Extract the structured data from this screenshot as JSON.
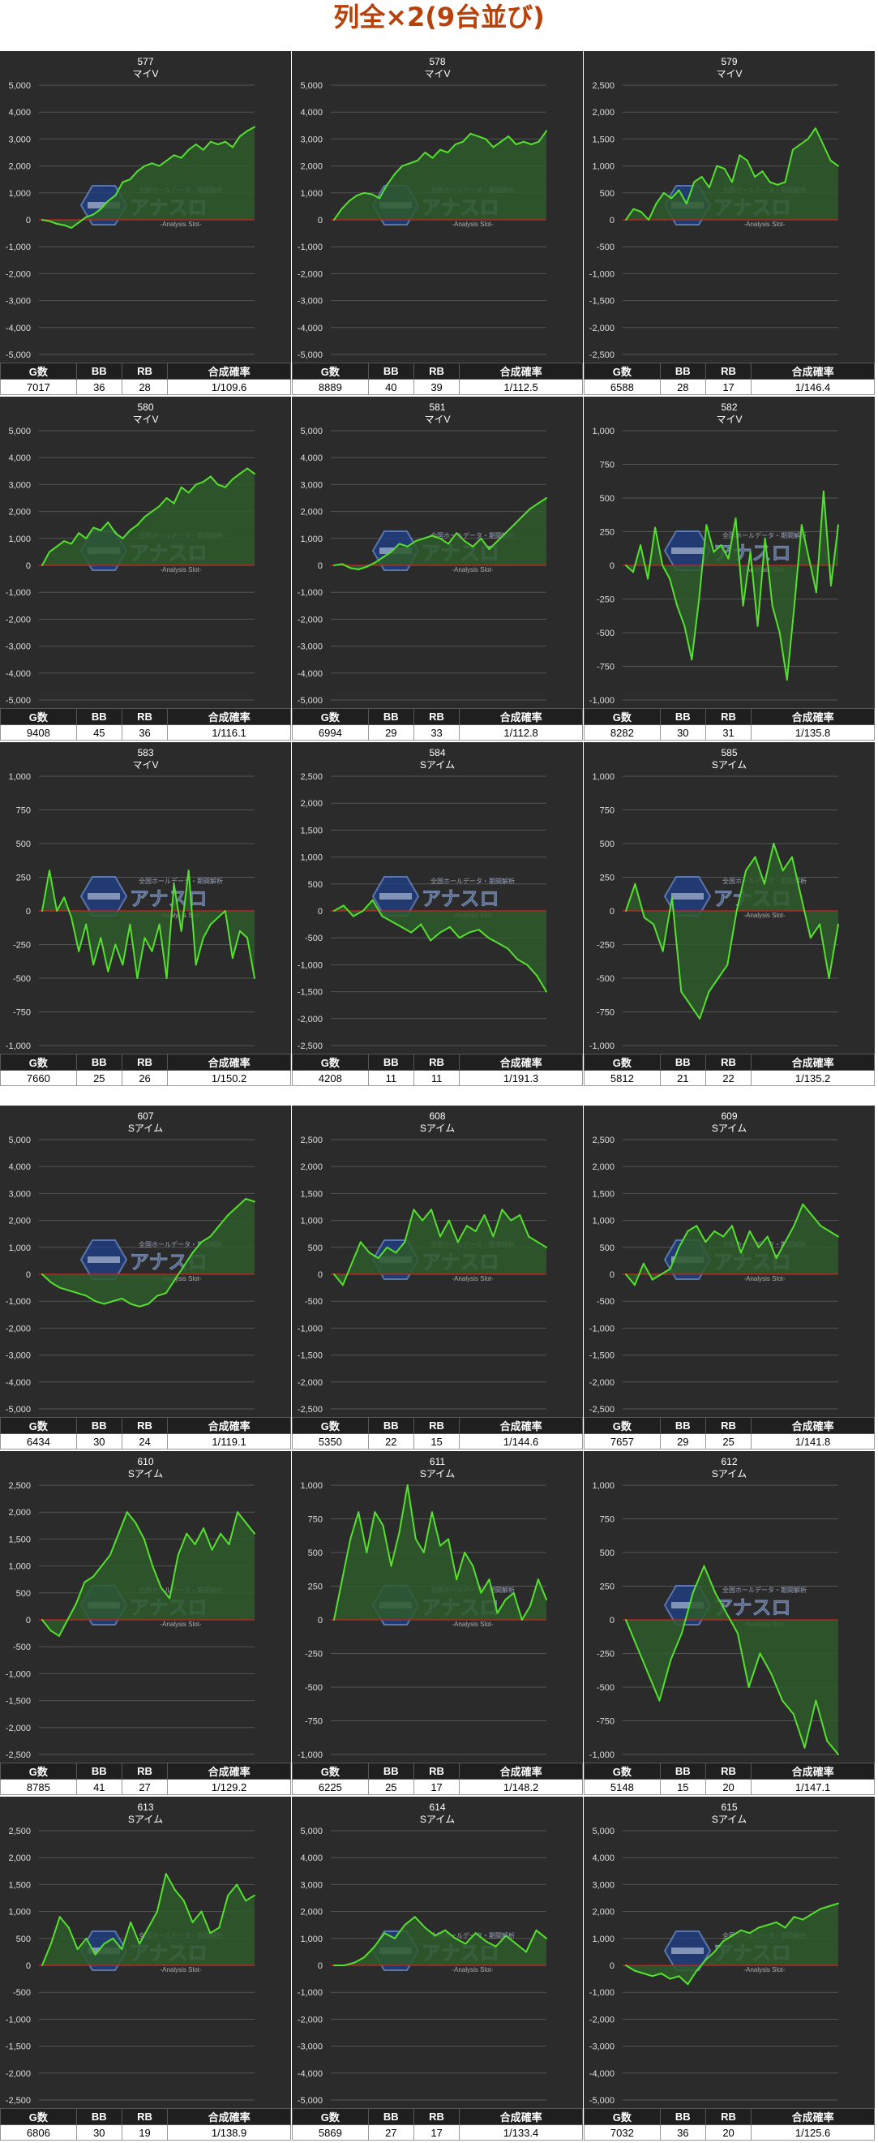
{
  "page_title": "列全×2(9台並び)",
  "stats_headers": [
    "G数",
    "BB",
    "RB",
    "合成確率"
  ],
  "colors": {
    "background": "#2b2b2b",
    "line": "#55e02f",
    "fill": "#2e5a2c",
    "zero_line": "#cc2222",
    "grid": "#555555",
    "title": "#b8410a"
  },
  "watermark": {
    "logo_text": "アナスロ",
    "sub_text": "-Analysis Slot-",
    "top_text": "全国ホールデータ・期間解析"
  },
  "chart_data": [
    {
      "type": "area",
      "title": "577",
      "subtitle": "マイV",
      "ylim": [
        -5000,
        5000
      ],
      "yticks": [
        5000,
        4000,
        3000,
        2000,
        1000,
        0,
        -1000,
        -2000,
        -3000,
        -4000,
        -5000
      ],
      "tick_labels": [
        "5,000",
        "4,000",
        "3,000",
        "2,000",
        "1,000",
        "0",
        "-1,000",
        "-2,000",
        "-3,000",
        "-4,000",
        "-5,000"
      ],
      "values": [
        0,
        -50,
        -150,
        -200,
        -300,
        -100,
        100,
        200,
        400,
        700,
        900,
        1400,
        1500,
        1800,
        2000,
        2100,
        2000,
        2200,
        2400,
        2300,
        2600,
        2800,
        2600,
        2900,
        2800,
        2900,
        2700,
        3100,
        3300,
        3450
      ],
      "stats": {
        "games": "7017",
        "bb": "36",
        "rb": "28",
        "prob": "1/109.6"
      }
    },
    {
      "type": "area",
      "title": "578",
      "subtitle": "マイV",
      "ylim": [
        -5000,
        5000
      ],
      "yticks": [
        5000,
        4000,
        3000,
        2000,
        1000,
        0,
        -1000,
        -2000,
        -3000,
        -4000,
        -5000
      ],
      "tick_labels": [
        "5,000",
        "4,000",
        "3,000",
        "2,000",
        "1,000",
        "0",
        "-1,000",
        "-2,000",
        "-3,000",
        "-4,000",
        "-5,000"
      ],
      "values": [
        0,
        400,
        700,
        900,
        1000,
        950,
        800,
        1300,
        1700,
        2000,
        2100,
        2200,
        2500,
        2300,
        2600,
        2500,
        2800,
        2900,
        3200,
        3100,
        3000,
        2700,
        2900,
        3100,
        2800,
        2900,
        2800,
        2900,
        3300
      ],
      "stats": {
        "games": "8889",
        "bb": "40",
        "rb": "39",
        "prob": "1/112.5"
      }
    },
    {
      "type": "area",
      "title": "579",
      "subtitle": "マイV",
      "ylim": [
        -2500,
        2500
      ],
      "yticks": [
        2500,
        2000,
        1500,
        1000,
        500,
        0,
        -500,
        -1000,
        -1500,
        -2000,
        -2500
      ],
      "tick_labels": [
        "2,500",
        "2,000",
        "1,500",
        "1,000",
        "500",
        "0",
        "-500",
        "-1,000",
        "-1,500",
        "-2,000",
        "-2,500"
      ],
      "values": [
        0,
        200,
        150,
        0,
        300,
        500,
        400,
        550,
        300,
        700,
        800,
        600,
        1000,
        950,
        700,
        1200,
        1100,
        800,
        900,
        700,
        650,
        700,
        1300,
        1400,
        1500,
        1700,
        1400,
        1100,
        1000
      ],
      "stats": {
        "games": "6588",
        "bb": "28",
        "rb": "17",
        "prob": "1/146.4"
      }
    },
    {
      "type": "area",
      "title": "580",
      "subtitle": "マイV",
      "ylim": [
        -5000,
        5000
      ],
      "yticks": [
        5000,
        4000,
        3000,
        2000,
        1000,
        0,
        -1000,
        -2000,
        -3000,
        -4000,
        -5000
      ],
      "tick_labels": [
        "5,000",
        "4,000",
        "3,000",
        "2,000",
        "1,000",
        "0",
        "-1,000",
        "-2,000",
        "-3,000",
        "-4,000",
        "-5,000"
      ],
      "values": [
        0,
        500,
        700,
        900,
        800,
        1200,
        1000,
        1400,
        1300,
        1600,
        1200,
        1000,
        1300,
        1500,
        1800,
        2000,
        2200,
        2500,
        2300,
        2900,
        2700,
        3000,
        3100,
        3300,
        3000,
        2900,
        3200,
        3400,
        3600,
        3400
      ],
      "stats": {
        "games": "9408",
        "bb": "45",
        "rb": "36",
        "prob": "1/116.1"
      }
    },
    {
      "type": "area",
      "title": "581",
      "subtitle": "マイV",
      "ylim": [
        -5000,
        5000
      ],
      "yticks": [
        5000,
        4000,
        3000,
        2000,
        1000,
        0,
        -1000,
        -2000,
        -3000,
        -4000,
        -5000
      ],
      "tick_labels": [
        "5,000",
        "4,000",
        "3,000",
        "2,000",
        "1,000",
        "0",
        "-1,000",
        "-2,000",
        "-3,000",
        "-4,000",
        "-5,000"
      ],
      "values": [
        0,
        50,
        -100,
        -150,
        -50,
        100,
        300,
        500,
        800,
        700,
        900,
        1000,
        1100,
        1000,
        800,
        1200,
        900,
        700,
        1000,
        600,
        900,
        1200,
        1500,
        1800,
        2100,
        2300,
        2500
      ],
      "stats": {
        "games": "6994",
        "bb": "29",
        "rb": "33",
        "prob": "1/112.8"
      }
    },
    {
      "type": "area",
      "title": "582",
      "subtitle": "マイV",
      "ylim": [
        -1000,
        1000
      ],
      "yticks": [
        1000,
        750,
        500,
        250,
        0,
        -250,
        -500,
        -750,
        -1000
      ],
      "tick_labels": [
        "1,000",
        "750",
        "500",
        "250",
        "0",
        "-250",
        "-500",
        "-750",
        "-1,000"
      ],
      "values": [
        0,
        -50,
        150,
        -100,
        280,
        0,
        -100,
        -300,
        -450,
        -700,
        -250,
        300,
        100,
        150,
        50,
        350,
        -300,
        100,
        -450,
        200,
        -300,
        -500,
        -850,
        -300,
        300,
        50,
        -200,
        550,
        -150,
        300
      ],
      "stats": {
        "games": "8282",
        "bb": "30",
        "rb": "31",
        "prob": "1/135.8"
      }
    },
    {
      "type": "area",
      "title": "583",
      "subtitle": "マイV",
      "ylim": [
        -1000,
        1000
      ],
      "yticks": [
        1000,
        750,
        500,
        250,
        0,
        -250,
        -500,
        -750,
        -1000
      ],
      "tick_labels": [
        "1,000",
        "750",
        "500",
        "250",
        "0",
        "-250",
        "-500",
        "-750",
        "-1,000"
      ],
      "values": [
        0,
        300,
        0,
        100,
        -50,
        -300,
        -100,
        -400,
        -200,
        -450,
        -250,
        -400,
        -100,
        -500,
        -200,
        -300,
        -100,
        -500,
        200,
        -150,
        300,
        -400,
        -200,
        -100,
        -50,
        0,
        -350,
        -150,
        -200,
        -500
      ],
      "stats": {
        "games": "7660",
        "bb": "25",
        "rb": "26",
        "prob": "1/150.2"
      }
    },
    {
      "type": "area",
      "title": "584",
      "subtitle": "Sアイム",
      "ylim": [
        -2500,
        2500
      ],
      "yticks": [
        2500,
        2000,
        1500,
        1000,
        500,
        0,
        -500,
        -1000,
        -1500,
        -2000,
        -2500
      ],
      "tick_labels": [
        "2,500",
        "2,000",
        "1,500",
        "1,000",
        "500",
        "0",
        "-500",
        "-1,000",
        "-1,500",
        "-2,000",
        "-2,500"
      ],
      "values": [
        0,
        100,
        -100,
        0,
        200,
        -100,
        -200,
        -300,
        -400,
        -250,
        -550,
        -400,
        -300,
        -500,
        -400,
        -350,
        -500,
        -600,
        -700,
        -900,
        -1000,
        -1200,
        -1500
      ],
      "stats": {
        "games": "4208",
        "bb": "11",
        "rb": "11",
        "prob": "1/191.3"
      }
    },
    {
      "type": "area",
      "title": "585",
      "subtitle": "Sアイム",
      "ylim": [
        -1000,
        1000
      ],
      "yticks": [
        1000,
        750,
        500,
        250,
        0,
        -250,
        -500,
        -750,
        -1000
      ],
      "tick_labels": [
        "1,000",
        "750",
        "500",
        "250",
        "0",
        "-250",
        "-500",
        "-750",
        "-1,000"
      ],
      "values": [
        0,
        200,
        -50,
        -100,
        -300,
        100,
        -600,
        -700,
        -800,
        -600,
        -500,
        -400,
        0,
        300,
        400,
        200,
        500,
        300,
        400,
        100,
        -200,
        -100,
        -500,
        -100
      ],
      "stats": {
        "games": "5812",
        "bb": "21",
        "rb": "22",
        "prob": "1/135.2"
      }
    },
    {
      "type": "area",
      "title": "607",
      "subtitle": "Sアイム",
      "ylim": [
        -5000,
        5000
      ],
      "yticks": [
        5000,
        4000,
        3000,
        2000,
        1000,
        0,
        -1000,
        -2000,
        -3000,
        -4000,
        -5000
      ],
      "tick_labels": [
        "5,000",
        "4,000",
        "3,000",
        "2,000",
        "1,000",
        "0",
        "-1,000",
        "-2,000",
        "-3,000",
        "-4,000",
        "-5,000"
      ],
      "values": [
        0,
        -300,
        -500,
        -600,
        -700,
        -800,
        -1000,
        -1100,
        -1000,
        -900,
        -1100,
        -1200,
        -1100,
        -800,
        -700,
        -200,
        300,
        800,
        1200,
        1400,
        1800,
        2200,
        2500,
        2800,
        2700
      ],
      "stats": {
        "games": "6434",
        "bb": "30",
        "rb": "24",
        "prob": "1/119.1"
      }
    },
    {
      "type": "area",
      "title": "608",
      "subtitle": "Sアイム",
      "ylim": [
        -2500,
        2500
      ],
      "yticks": [
        2500,
        2000,
        1500,
        1000,
        500,
        0,
        -500,
        -1000,
        -1500,
        -2000,
        -2500
      ],
      "tick_labels": [
        "2,500",
        "2,000",
        "1,500",
        "1,000",
        "500",
        "0",
        "-500",
        "-1,000",
        "-1,500",
        "-2,000",
        "-2,500"
      ],
      "values": [
        0,
        -200,
        200,
        600,
        400,
        300,
        500,
        400,
        600,
        1200,
        1000,
        1200,
        700,
        1000,
        600,
        900,
        800,
        1100,
        700,
        1200,
        1000,
        1100,
        700,
        600,
        500
      ],
      "stats": {
        "games": "5350",
        "bb": "22",
        "rb": "15",
        "prob": "1/144.6"
      }
    },
    {
      "type": "area",
      "title": "609",
      "subtitle": "Sアイム",
      "ylim": [
        -2500,
        2500
      ],
      "yticks": [
        2500,
        2000,
        1500,
        1000,
        500,
        0,
        -500,
        -1000,
        -1500,
        -2000,
        -2500
      ],
      "tick_labels": [
        "2,500",
        "2,000",
        "1,500",
        "1,000",
        "500",
        "0",
        "-500",
        "-1,000",
        "-1,500",
        "-2,000",
        "-2,500"
      ],
      "values": [
        0,
        -200,
        200,
        -100,
        0,
        100,
        500,
        800,
        900,
        600,
        800,
        700,
        900,
        400,
        800,
        500,
        700,
        300,
        600,
        900,
        1300,
        1100,
        900,
        800,
        700
      ],
      "stats": {
        "games": "7657",
        "bb": "29",
        "rb": "25",
        "prob": "1/141.8"
      }
    },
    {
      "type": "area",
      "title": "610",
      "subtitle": "Sアイム",
      "ylim": [
        -2500,
        2500
      ],
      "yticks": [
        2500,
        2000,
        1500,
        1000,
        500,
        0,
        -500,
        -1000,
        -1500,
        -2000,
        -2500
      ],
      "tick_labels": [
        "2,500",
        "2,000",
        "1,500",
        "1,000",
        "500",
        "0",
        "-500",
        "-1,000",
        "-1,500",
        "-2,000",
        "-2,500"
      ],
      "values": [
        0,
        -200,
        -300,
        0,
        300,
        700,
        800,
        1000,
        1200,
        1600,
        2000,
        1800,
        1500,
        1000,
        600,
        400,
        1200,
        1600,
        1400,
        1700,
        1300,
        1600,
        1400,
        2000,
        1800,
        1600
      ],
      "stats": {
        "games": "8785",
        "bb": "41",
        "rb": "27",
        "prob": "1/129.2"
      }
    },
    {
      "type": "area",
      "title": "611",
      "subtitle": "Sアイム",
      "ylim": [
        -1000,
        1000
      ],
      "yticks": [
        1000,
        750,
        500,
        250,
        0,
        -250,
        -500,
        -750,
        -1000
      ],
      "tick_labels": [
        "1,000",
        "750",
        "500",
        "250",
        "0",
        "-250",
        "-500",
        "-750",
        "-1,000"
      ],
      "values": [
        0,
        300,
        600,
        800,
        500,
        800,
        700,
        400,
        650,
        1000,
        600,
        500,
        800,
        550,
        600,
        300,
        500,
        400,
        200,
        300,
        50,
        150,
        200,
        0,
        100,
        300,
        150
      ],
      "stats": {
        "games": "6225",
        "bb": "25",
        "rb": "17",
        "prob": "1/148.2"
      }
    },
    {
      "type": "area",
      "title": "612",
      "subtitle": "Sアイム",
      "ylim": [
        -1000,
        1000
      ],
      "yticks": [
        1000,
        750,
        500,
        250,
        0,
        -250,
        -500,
        -750,
        -1000
      ],
      "tick_labels": [
        "1,000",
        "750",
        "500",
        "250",
        "0",
        "-250",
        "-500",
        "-750",
        "-1,000"
      ],
      "values": [
        0,
        -200,
        -400,
        -600,
        -300,
        -100,
        200,
        400,
        200,
        50,
        -100,
        -500,
        -250,
        -400,
        -600,
        -700,
        -950,
        -600,
        -900,
        -1000
      ],
      "stats": {
        "games": "5148",
        "bb": "15",
        "rb": "20",
        "prob": "1/147.1"
      }
    },
    {
      "type": "area",
      "title": "613",
      "subtitle": "Sアイム",
      "ylim": [
        -2500,
        2500
      ],
      "yticks": [
        2500,
        2000,
        1500,
        1000,
        500,
        0,
        -500,
        -1000,
        -1500,
        -2000,
        -2500
      ],
      "tick_labels": [
        "2,500",
        "2,000",
        "1,500",
        "1,000",
        "500",
        "0",
        "-500",
        "-1,000",
        "-1,500",
        "-2,000",
        "-2,500"
      ],
      "values": [
        0,
        400,
        900,
        700,
        300,
        500,
        200,
        400,
        500,
        300,
        800,
        400,
        700,
        1000,
        1700,
        1400,
        1200,
        800,
        1000,
        600,
        700,
        1300,
        1500,
        1200,
        1300
      ],
      "stats": {
        "games": "6806",
        "bb": "30",
        "rb": "19",
        "prob": "1/138.9"
      }
    },
    {
      "type": "area",
      "title": "614",
      "subtitle": "Sアイム",
      "ylim": [
        -5000,
        5000
      ],
      "yticks": [
        5000,
        4000,
        3000,
        2000,
        1000,
        0,
        -1000,
        -2000,
        -3000,
        -4000,
        -5000
      ],
      "tick_labels": [
        "5,000",
        "4,000",
        "3,000",
        "2,000",
        "1,000",
        "0",
        "-1,000",
        "-2,000",
        "-3,000",
        "-4,000",
        "-5,000"
      ],
      "values": [
        0,
        0,
        100,
        300,
        700,
        1200,
        1000,
        1500,
        1800,
        1400,
        1100,
        1300,
        1000,
        800,
        1200,
        900,
        700,
        1100,
        800,
        500,
        1300,
        1000
      ],
      "stats": {
        "games": "5869",
        "bb": "27",
        "rb": "17",
        "prob": "1/133.4"
      }
    },
    {
      "type": "area",
      "title": "615",
      "subtitle": "Sアイム",
      "ylim": [
        -5000,
        5000
      ],
      "yticks": [
        5000,
        4000,
        3000,
        2000,
        1000,
        0,
        -1000,
        -2000,
        -3000,
        -4000,
        -5000
      ],
      "tick_labels": [
        "5,000",
        "4,000",
        "3,000",
        "2,000",
        "1,000",
        "0",
        "-1,000",
        "-2,000",
        "-3,000",
        "-4,000",
        "-5,000"
      ],
      "values": [
        0,
        -200,
        -300,
        -400,
        -300,
        -500,
        -400,
        -700,
        -200,
        200,
        500,
        900,
        1100,
        1300,
        1200,
        1400,
        1500,
        1600,
        1400,
        1800,
        1700,
        1900,
        2100,
        2200,
        2300
      ],
      "stats": {
        "games": "7032",
        "bb": "36",
        "rb": "20",
        "prob": "1/125.6"
      }
    }
  ]
}
